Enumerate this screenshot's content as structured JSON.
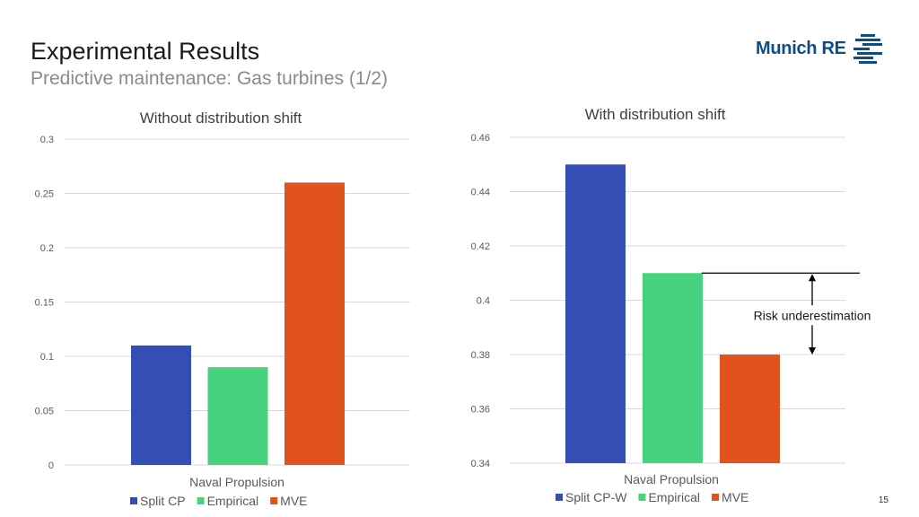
{
  "header": {
    "title": "Experimental Results",
    "subtitle": "Predictive maintenance: Gas turbines (1/2)",
    "logo_text": "Munich RE"
  },
  "page_number": "15",
  "colors": {
    "blue": "#334fb5",
    "green": "#48d17f",
    "orange": "#e0531f",
    "grid": "#d9d9d9"
  },
  "chart_data": [
    {
      "type": "bar",
      "title": "Without distribution shift",
      "categories": [
        "Naval Propulsion"
      ],
      "series": [
        {
          "name": "Split CP",
          "values": [
            0.11
          ]
        },
        {
          "name": "Empirical",
          "values": [
            0.09
          ]
        },
        {
          "name": "MVE",
          "values": [
            0.26
          ]
        }
      ],
      "ylim": [
        0,
        0.3
      ],
      "yticks": [
        "0",
        "0.05",
        "0.1",
        "0.15",
        "0.2",
        "0.25",
        "0.3"
      ],
      "grid": true,
      "legend": "bottom"
    },
    {
      "type": "bar",
      "title": "With distribution shift",
      "categories": [
        "Naval Propulsion"
      ],
      "series": [
        {
          "name": "Split CP-W",
          "values": [
            0.45
          ]
        },
        {
          "name": "Empirical",
          "values": [
            0.41
          ]
        },
        {
          "name": "MVE",
          "values": [
            0.38
          ]
        }
      ],
      "ylim": [
        0.34,
        0.46
      ],
      "yticks": [
        "0.34",
        "0.36",
        "0.38",
        "0.4",
        "0.42",
        "0.44",
        "0.46"
      ],
      "grid": true,
      "legend": "bottom",
      "annotation": {
        "text": "Risk underestimation"
      }
    }
  ]
}
